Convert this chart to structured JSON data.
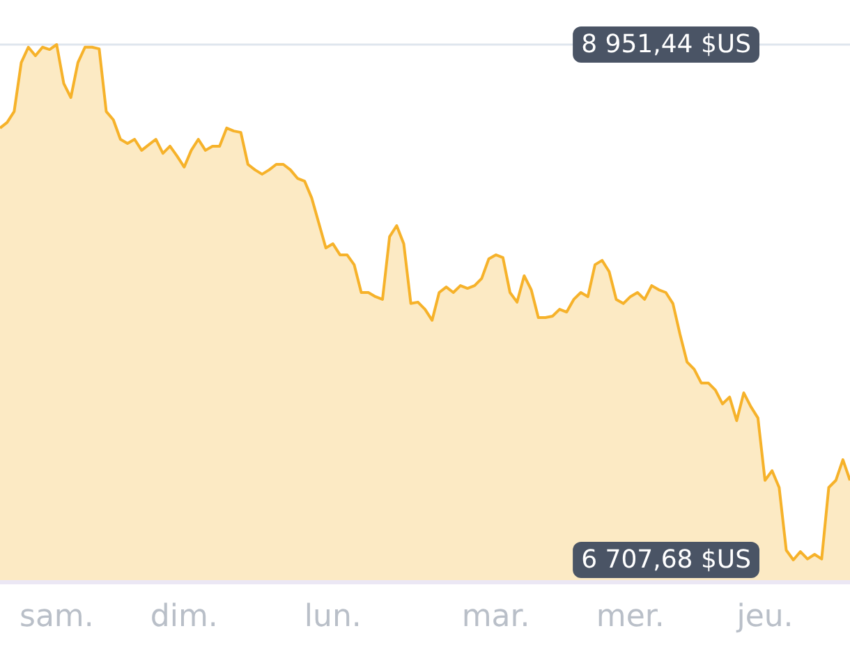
{
  "chart_data": {
    "type": "area",
    "color": "#f6b22a",
    "categories": [
      null,
      null,
      null,
      null,
      null,
      null,
      null,
      null,
      "sam.",
      null,
      null,
      null,
      null,
      null,
      null,
      null,
      null,
      null,
      null,
      null,
      null,
      null,
      null,
      null,
      null,
      null,
      "dim.",
      null,
      null,
      null,
      null,
      null,
      null,
      null,
      null,
      null,
      null,
      null,
      null,
      null,
      null,
      null,
      null,
      null,
      null,
      null,
      null,
      "lun.",
      null,
      null,
      null,
      null,
      null,
      null,
      null,
      null,
      null,
      null,
      null,
      null,
      null,
      null,
      null,
      null,
      null,
      null,
      null,
      null,
      null,
      null,
      "mar.",
      null,
      null,
      null,
      null,
      null,
      null,
      null,
      null,
      null,
      null,
      null,
      null,
      null,
      null,
      null,
      null,
      null,
      null,
      "mer.",
      null,
      null,
      null,
      null,
      null,
      null,
      null,
      null,
      null,
      null,
      null,
      null,
      null,
      null,
      null,
      null,
      null,
      null,
      "jeu.",
      null,
      null,
      null,
      null,
      null,
      null,
      null,
      null,
      null,
      null,
      null,
      null
    ],
    "values": [
      8588,
      8612,
      8660,
      8873,
      8940,
      8903,
      8940,
      8930,
      8951.44,
      8782,
      8721,
      8873,
      8940,
      8940,
      8933,
      8660,
      8624,
      8539,
      8521,
      8539,
      8491,
      8515,
      8539,
      8478,
      8509,
      8466,
      8418,
      8491,
      8539,
      8491,
      8509,
      8509,
      8588,
      8575,
      8569,
      8430,
      8406,
      8387,
      8406,
      8430,
      8430,
      8406,
      8369,
      8357,
      8284,
      8175,
      8066,
      8084,
      8036,
      8036,
      7993,
      7872,
      7872,
      7854,
      7842,
      8115,
      8163,
      8084,
      7824,
      7830,
      7799,
      7751,
      7872,
      7896,
      7872,
      7902,
      7890,
      7902,
      7933,
      8018,
      8036,
      8024,
      7872,
      7830,
      7945,
      7884,
      7763,
      7763,
      7769,
      7799,
      7787,
      7842,
      7872,
      7854,
      7993,
      8012,
      7963,
      7842,
      7824,
      7854,
      7872,
      7842,
      7902,
      7884,
      7872,
      7824,
      7690,
      7569,
      7538,
      7478,
      7478,
      7447,
      7387,
      7417,
      7314,
      7435,
      7375,
      7326,
      7054,
      7096,
      7023,
      6750,
      6707.68,
      6744,
      6712,
      6732,
      6712,
      7023,
      7054,
      7144,
      7054
    ],
    "ylim": [
      6707.68,
      8951.44
    ],
    "yticks": [
      {
        "value": 8951.44,
        "label": "8 951,44 $US"
      },
      {
        "value": 6707.68,
        "label": "6 707,68 $US"
      }
    ],
    "ref_lines": [
      {
        "axis": "y",
        "value": 8951.44,
        "color": "#dfe6ee"
      }
    ]
  }
}
